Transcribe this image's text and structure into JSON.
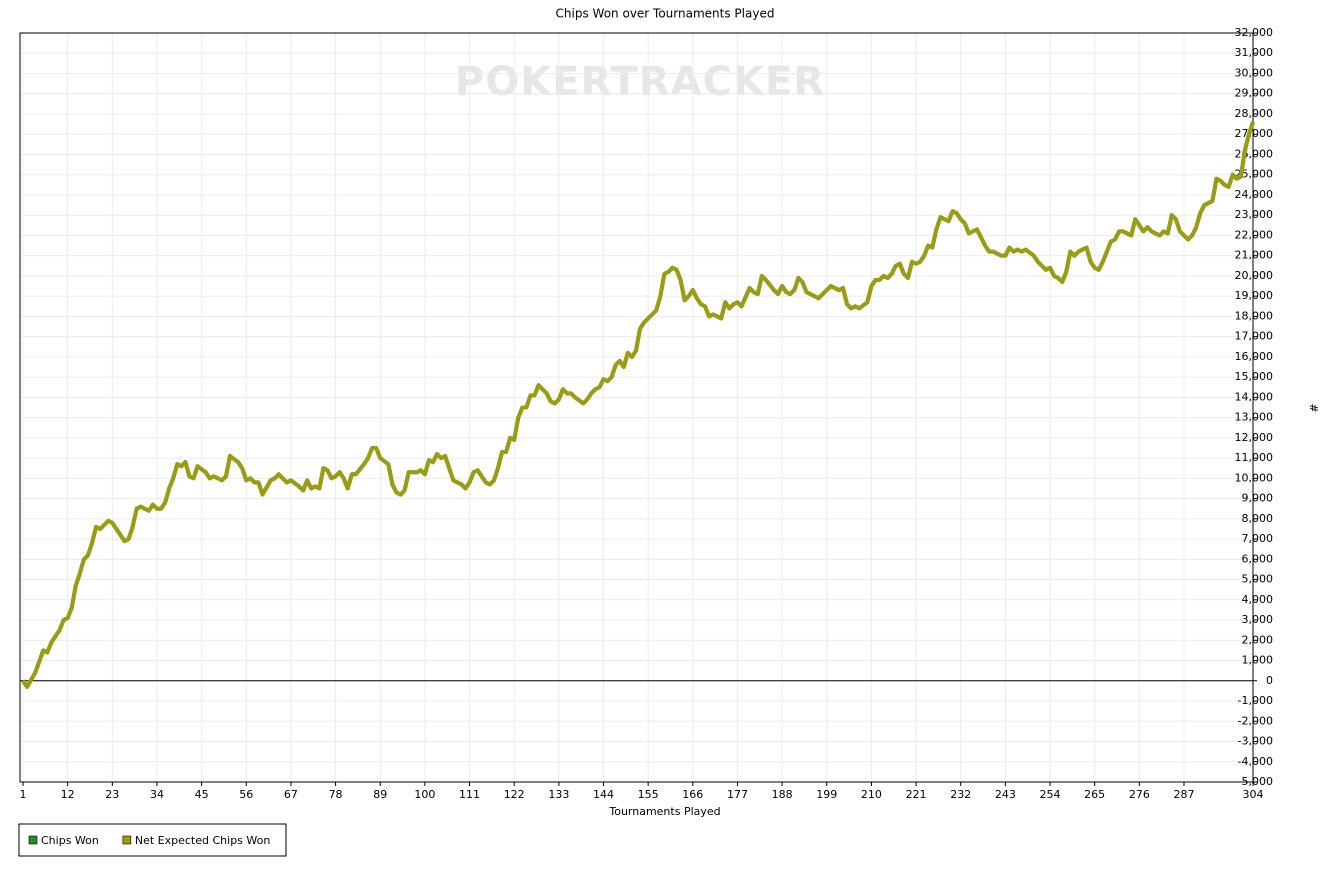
{
  "chart_data": {
    "type": "line",
    "title": "Chips Won over Tournaments Played",
    "watermark": "POKERTRACKER",
    "x_label": "Tournaments Played",
    "y_label": "#",
    "xlim": [
      1,
      304
    ],
    "xticks": [
      1,
      12,
      23,
      34,
      45,
      56,
      67,
      78,
      89,
      100,
      111,
      122,
      133,
      144,
      155,
      166,
      177,
      188,
      199,
      210,
      221,
      232,
      243,
      254,
      265,
      276,
      287,
      304
    ],
    "ylim": [
      -5000,
      32000
    ],
    "yticks": [
      {
        "value": -5000,
        "label": "-5,000"
      },
      {
        "value": -4000,
        "label": "-4,000"
      },
      {
        "value": -3000,
        "label": "-3,000"
      },
      {
        "value": -2000,
        "label": "-2,000"
      },
      {
        "value": -1000,
        "label": "-1,000"
      },
      0,
      {
        "value": 1000,
        "label": "1,000"
      },
      {
        "value": 2000,
        "label": "2,000"
      },
      {
        "value": 3000,
        "label": "3,000"
      },
      {
        "value": 4000,
        "label": "4,000"
      },
      {
        "value": 5000,
        "label": "5,000"
      },
      {
        "value": 6000,
        "label": "6,000"
      },
      {
        "value": 7000,
        "label": "7,000"
      },
      {
        "value": 8000,
        "label": "8,000"
      },
      {
        "value": 9000,
        "label": "9,000"
      },
      {
        "value": 10000,
        "label": "10,000"
      },
      {
        "value": 11000,
        "label": "11,000"
      },
      {
        "value": 12000,
        "label": "12,000"
      },
      {
        "value": 13000,
        "label": "13,000"
      },
      {
        "value": 14000,
        "label": "14,000"
      },
      {
        "value": 15000,
        "label": "15,000"
      },
      {
        "value": 16000,
        "label": "16,000"
      },
      {
        "value": 17000,
        "label": "17,000"
      },
      {
        "value": 18000,
        "label": "18,000"
      },
      {
        "value": 19000,
        "label": "19,000"
      },
      {
        "value": 20000,
        "label": "20,000"
      },
      {
        "value": 21000,
        "label": "21,000"
      },
      {
        "value": 22000,
        "label": "22,000"
      },
      {
        "value": 23000,
        "label": "23,000"
      },
      {
        "value": 24000,
        "label": "24,000"
      },
      {
        "value": 25000,
        "label": "25,000"
      },
      {
        "value": 26000,
        "label": "26,000"
      },
      {
        "value": 27000,
        "label": "27,000"
      },
      {
        "value": 28000,
        "label": "28,000"
      },
      {
        "value": 29000,
        "label": "29,000"
      },
      {
        "value": 30000,
        "label": "30,000"
      },
      {
        "value": 31000,
        "label": "31,000"
      },
      {
        "value": 32000,
        "label": "32,000"
      }
    ],
    "grid": true,
    "x": [
      1,
      2,
      4,
      6,
      7,
      8,
      10,
      11,
      12,
      13,
      14,
      15,
      16,
      17,
      18,
      19,
      20,
      22,
      23,
      25,
      26,
      27,
      28,
      29,
      30,
      32,
      33,
      34,
      35,
      36,
      37,
      38,
      39,
      40,
      41,
      42,
      43,
      44,
      46,
      47,
      48,
      50,
      51,
      52,
      54,
      55,
      56,
      57,
      58,
      59,
      60,
      62,
      63,
      64,
      66,
      67,
      69,
      70,
      71,
      72,
      73,
      74,
      75,
      76,
      77,
      78,
      79,
      80,
      81,
      82,
      83,
      85,
      86,
      87,
      88,
      89,
      91,
      92,
      93,
      94,
      95,
      96,
      98,
      99,
      100,
      101,
      102,
      103,
      104,
      105,
      106,
      107,
      109,
      110,
      111,
      112,
      113,
      114,
      115,
      116,
      117,
      118,
      119,
      120,
      121,
      122,
      123,
      124,
      125,
      126,
      127,
      128,
      130,
      131,
      132,
      133,
      134,
      135,
      136,
      137,
      139,
      140,
      141,
      142,
      143,
      144,
      145,
      146,
      147,
      148,
      149,
      150,
      151,
      152,
      153,
      154,
      156,
      157,
      158,
      159,
      160,
      161,
      162,
      163,
      164,
      165,
      166,
      167,
      168,
      169,
      170,
      171,
      173,
      174,
      175,
      176,
      177,
      178,
      180,
      181,
      182,
      183,
      184,
      186,
      187,
      188,
      189,
      190,
      191,
      192,
      193,
      194,
      196,
      197,
      199,
      200,
      202,
      203,
      204,
      205,
      206,
      207,
      209,
      210,
      211,
      212,
      213,
      214,
      215,
      216,
      217,
      218,
      219,
      220,
      221,
      222,
      223,
      224,
      225,
      226,
      227,
      228,
      229,
      230,
      231,
      232,
      233,
      234,
      235,
      236,
      238,
      239,
      240,
      241,
      242,
      243,
      244,
      245,
      246,
      247,
      248,
      250,
      251,
      252,
      253,
      254,
      255,
      256,
      257,
      258,
      259,
      260,
      261,
      262,
      263,
      264,
      265,
      266,
      267,
      269,
      270,
      271,
      272,
      273,
      274,
      275,
      276,
      277,
      278,
      279,
      280,
      281,
      282,
      283,
      284,
      285,
      286,
      287,
      288,
      289,
      290,
      291,
      292,
      293,
      294,
      295,
      296,
      297,
      298,
      299,
      300,
      301,
      302,
      303,
      304
    ],
    "series": [
      {
        "name": "Chips Won",
        "color": "#2a8a2a",
        "values": [
          0,
          -300,
          400,
          1500,
          1400,
          1900,
          2500,
          3000,
          3100,
          3600,
          4700,
          5300,
          6000,
          6200,
          6800,
          7600,
          7500,
          7900,
          7800,
          7200,
          6900,
          7000,
          7600,
          8500,
          8600,
          8400,
          8700,
          8500,
          8500,
          8800,
          9500,
          10000,
          10700,
          10600,
          10800,
          10100,
          10000,
          10600,
          10300,
          10000,
          10100,
          9900,
          10100,
          11100,
          10800,
          10500,
          9900,
          10000,
          9800,
          9800,
          9200,
          9900,
          10000,
          10200,
          9800,
          9900,
          9600,
          9400,
          9900,
          9500,
          9600,
          9500,
          10500,
          10400,
          10000,
          10100,
          10300,
          10000,
          9500,
          10200,
          10200,
          10700,
          11000,
          11500,
          11500,
          11000,
          10700,
          9700,
          9300,
          9200,
          9400,
          10300,
          10300,
          10400,
          10200,
          10900,
          10800,
          11200,
          11000,
          11100,
          10500,
          9900,
          9700,
          9500,
          9800,
          10300,
          10400,
          10100,
          9800,
          9700,
          9900,
          10500,
          11300,
          11300,
          12000,
          11900,
          13000,
          13500,
          13500,
          14100,
          14100,
          14600,
          14200,
          13800,
          13700,
          13900,
          14400,
          14200,
          14200,
          14000,
          13700,
          13900,
          14200,
          14400,
          14500,
          14900,
          14800,
          15000,
          15600,
          15800,
          15500,
          16200,
          16000,
          16300,
          17400,
          17700,
          18100,
          18300,
          19000,
          20100,
          20200,
          20400,
          20300,
          19800,
          18800,
          19000,
          19300,
          18900,
          18600,
          18500,
          18000,
          18100,
          17900,
          18700,
          18400,
          18600,
          18700,
          18500,
          19400,
          19200,
          19100,
          20000,
          19800,
          19300,
          19100,
          19500,
          19200,
          19100,
          19300,
          19900,
          19700,
          19200,
          19000,
          18900,
          19300,
          19500,
          19300,
          19400,
          18600,
          18400,
          18500,
          18400,
          18700,
          19500,
          19800,
          19800,
          20000,
          19900,
          20100,
          20500,
          20600,
          20100,
          19900,
          20700,
          20600,
          20700,
          21000,
          21500,
          21400,
          22300,
          22900,
          22800,
          22700,
          23200,
          23100,
          22800,
          22600,
          22100,
          22200,
          22300,
          21500,
          21200,
          21200,
          21100,
          21000,
          21000,
          21400,
          21200,
          21300,
          21200,
          21300,
          21000,
          20700,
          20500,
          20300,
          20400,
          20000,
          19900,
          19700,
          20200,
          21200,
          21000,
          21200,
          21300,
          21400,
          20700,
          20400,
          20300,
          20700,
          21700,
          21800,
          22200,
          22200,
          22100,
          22000,
          22800,
          22500,
          22200,
          22400,
          22200,
          22100,
          22000,
          22200,
          22100,
          23000,
          22800,
          22200,
          22000,
          21800,
          22000,
          22400,
          23100,
          23500,
          23600,
          23700,
          24800,
          24700,
          24500,
          24400,
          25000,
          24800,
          24900,
          26200,
          27000,
          27600
        ]
      },
      {
        "name": "Net Expected Chips Won",
        "color": "#9c9c12",
        "values": [
          0,
          -300,
          400,
          1500,
          1400,
          1900,
          2500,
          3000,
          3100,
          3600,
          4700,
          5300,
          6000,
          6200,
          6800,
          7600,
          7500,
          7900,
          7800,
          7200,
          6900,
          7000,
          7600,
          8500,
          8600,
          8400,
          8700,
          8500,
          8500,
          8800,
          9500,
          10000,
          10700,
          10600,
          10800,
          10100,
          10000,
          10600,
          10300,
          10000,
          10100,
          9900,
          10100,
          11100,
          10800,
          10500,
          9900,
          10000,
          9800,
          9800,
          9200,
          9900,
          10000,
          10200,
          9800,
          9900,
          9600,
          9400,
          9900,
          9500,
          9600,
          9500,
          10500,
          10400,
          10000,
          10100,
          10300,
          10000,
          9500,
          10200,
          10200,
          10700,
          11000,
          11500,
          11500,
          11000,
          10700,
          9700,
          9300,
          9200,
          9400,
          10300,
          10300,
          10400,
          10200,
          10900,
          10800,
          11200,
          11000,
          11100,
          10500,
          9900,
          9700,
          9500,
          9800,
          10300,
          10400,
          10100,
          9800,
          9700,
          9900,
          10500,
          11300,
          11300,
          12000,
          11900,
          13000,
          13500,
          13500,
          14100,
          14100,
          14600,
          14200,
          13800,
          13700,
          13900,
          14400,
          14200,
          14200,
          14000,
          13700,
          13900,
          14200,
          14400,
          14500,
          14900,
          14800,
          15000,
          15600,
          15800,
          15500,
          16200,
          16000,
          16300,
          17400,
          17700,
          18100,
          18300,
          19000,
          20100,
          20200,
          20400,
          20300,
          19800,
          18800,
          19000,
          19300,
          18900,
          18600,
          18500,
          18000,
          18100,
          17900,
          18700,
          18400,
          18600,
          18700,
          18500,
          19400,
          19200,
          19100,
          20000,
          19800,
          19300,
          19100,
          19500,
          19200,
          19100,
          19300,
          19900,
          19700,
          19200,
          19000,
          18900,
          19300,
          19500,
          19300,
          19400,
          18600,
          18400,
          18500,
          18400,
          18700,
          19500,
          19800,
          19800,
          20000,
          19900,
          20100,
          20500,
          20600,
          20100,
          19900,
          20700,
          20600,
          20700,
          21000,
          21500,
          21400,
          22300,
          22900,
          22800,
          22700,
          23200,
          23100,
          22800,
          22600,
          22100,
          22200,
          22300,
          21500,
          21200,
          21200,
          21100,
          21000,
          21000,
          21400,
          21200,
          21300,
          21200,
          21300,
          21000,
          20700,
          20500,
          20300,
          20400,
          20000,
          19900,
          19700,
          20200,
          21200,
          21000,
          21200,
          21300,
          21400,
          20700,
          20400,
          20300,
          20700,
          21700,
          21800,
          22200,
          22200,
          22100,
          22000,
          22800,
          22500,
          22200,
          22400,
          22200,
          22100,
          22000,
          22200,
          22100,
          23000,
          22800,
          22200,
          22000,
          21800,
          22000,
          22400,
          23100,
          23500,
          23600,
          23700,
          24800,
          24700,
          24500,
          24400,
          25000,
          24800,
          24900,
          26200,
          27000,
          27600
        ]
      }
    ]
  }
}
